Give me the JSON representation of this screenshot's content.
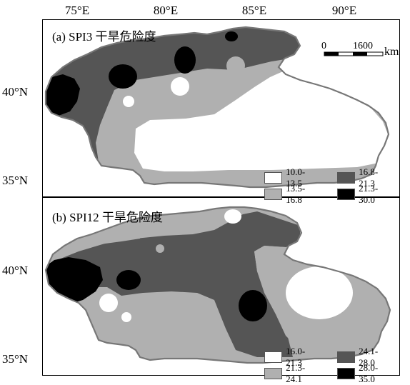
{
  "axes": {
    "longitude_labels": [
      "75°E",
      "80°E",
      "85°E",
      "90°E"
    ],
    "latitude_labels_a": [
      "40°N",
      "35°N"
    ],
    "latitude_labels_b": [
      "40°N",
      "35°N"
    ]
  },
  "panel_a": {
    "title": "(a) SPI3 干旱危险度",
    "legend": [
      {
        "range": "10.0-13.5",
        "color": "#ffffff"
      },
      {
        "range": "16.8-21.3",
        "color": "#555555"
      },
      {
        "range": "13.5-16.8",
        "color": "#b0b0b0"
      },
      {
        "range": "21.3-30.0",
        "color": "#000000"
      }
    ]
  },
  "panel_b": {
    "title": "(b) SPI12 干旱危险度",
    "legend": [
      {
        "range": "16.0-21.3",
        "color": "#ffffff"
      },
      {
        "range": "24.1-28.0",
        "color": "#555555"
      },
      {
        "range": "21.3-24.1",
        "color": "#b0b0b0"
      },
      {
        "range": "28.0-35.0",
        "color": "#000000"
      }
    ]
  },
  "scale_bar": {
    "zero": "0",
    "distance": "1600",
    "unit": "km"
  }
}
